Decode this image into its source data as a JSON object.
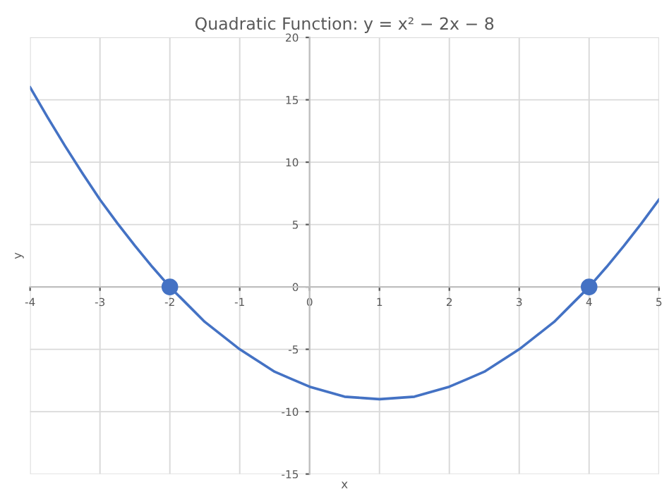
{
  "chart_data": {
    "type": "line",
    "title": "Quadratic Function: y = x² − 2x − 8",
    "xlabel": "x",
    "ylabel": "y",
    "series": [
      {
        "color": "#4472c4",
        "x": [
          -4,
          -3.75,
          -3.5,
          -3.25,
          -3,
          -2.75,
          -2.5,
          -2.25,
          -2,
          -1.75,
          -1.5,
          -1.25,
          -1,
          -0.75,
          -0.5,
          -0.25,
          0,
          0.25,
          0.5,
          0.75,
          1,
          1.25,
          1.5,
          1.75,
          2,
          2.25,
          2.5,
          2.75,
          3,
          3.25,
          3.5,
          3.75,
          4,
          4.25,
          4.5,
          4.75,
          5
        ],
        "values": [
          16,
          13.6,
          11.3,
          9.1,
          7,
          5.1,
          3.3,
          1.6,
          0,
          -1.4,
          -2.8,
          -3.9,
          -5,
          -5.9,
          -6.8,
          -7.4,
          -8,
          -8.4,
          -8.8,
          -8.9,
          -9,
          -8.9,
          -8.8,
          -8.4,
          -8,
          -7.4,
          -6.8,
          -5.9,
          -5,
          -3.9,
          -2.8,
          -1.4,
          0,
          1.6,
          3.3,
          5.1,
          7
        ]
      },
      {
        "type": "scatter",
        "marker": "circle",
        "color": "#4472c4",
        "x": [
          -2,
          4
        ],
        "values": [
          0,
          0
        ]
      }
    ],
    "line_style": "solid",
    "xlim": [
      -4,
      5
    ],
    "ylim": [
      -15,
      20
    ],
    "xticks": [
      -4,
      -3,
      -2,
      -1,
      0,
      1,
      2,
      3,
      4,
      5
    ],
    "yticks": [
      -15,
      -10,
      -5,
      0,
      5,
      10,
      15,
      20
    ],
    "grid": true
  }
}
